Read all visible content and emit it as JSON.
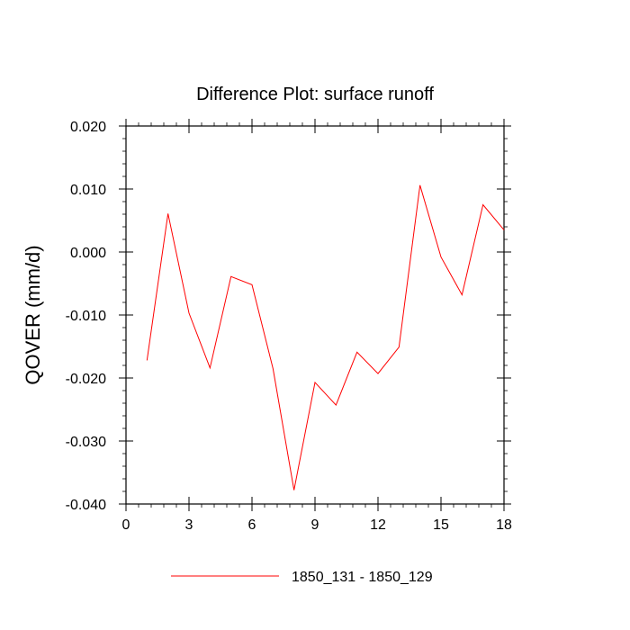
{
  "chart_data": {
    "type": "line",
    "title": "Difference Plot: surface runoff",
    "xlabel": "",
    "ylabel": "QOVER  (mm/d)",
    "xlim": [
      0,
      18
    ],
    "ylim": [
      -0.04,
      0.02
    ],
    "xticks": [
      0,
      3,
      6,
      9,
      12,
      15,
      18
    ],
    "xtick_labels": [
      "0",
      "3",
      "6",
      "9",
      "12",
      "15",
      "18"
    ],
    "yticks": [
      -0.04,
      -0.03,
      -0.02,
      -0.01,
      0.0,
      0.01,
      0.02
    ],
    "ytick_labels": [
      "-0.040",
      "-0.030",
      "-0.020",
      "-0.010",
      "0.000",
      "0.010",
      "0.020"
    ],
    "grid": false,
    "legend_position": "bottom",
    "series": [
      {
        "name": "1850_131 - 1850_129",
        "color": "#ff0000",
        "x": [
          1,
          2,
          3,
          4,
          5,
          6,
          7,
          8,
          9,
          10,
          11,
          12,
          13,
          14,
          15,
          16,
          17,
          18
        ],
        "y": [
          -0.0172,
          0.0061,
          -0.0097,
          -0.0184,
          -0.0039,
          -0.0052,
          -0.0185,
          -0.0378,
          -0.0207,
          -0.0243,
          -0.0159,
          -0.0193,
          -0.0151,
          0.0106,
          -0.0008,
          -0.0068,
          0.0075,
          0.0035
        ]
      }
    ]
  }
}
